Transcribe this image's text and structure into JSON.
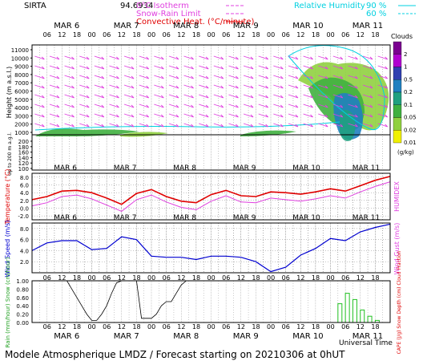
{
  "header": {
    "site": "SIRTA",
    "altitude_code": "94.6934",
    "legend_isotherm": "0°C Isotherm",
    "legend_snow_rain": "Snow-Rain Limit",
    "legend_convective": "Convective Heat. (°C/minute)",
    "legend_rh": "Relative Humidity",
    "rh_90": "90 %",
    "rh_60": "60 %"
  },
  "footer": {
    "title": "Modele Atmospherique LMDZ / Forecast starting on 20210306 at 0hUT",
    "xlabel": "Universal Time"
  },
  "days": [
    "MAR 6",
    "MAR 7",
    "MAR 8",
    "MAR 9",
    "MAR 10",
    "MAR 11"
  ],
  "hour_ticks": [
    "06",
    "12",
    "18",
    "00"
  ],
  "chart_data": [
    {
      "type": "heatmap",
      "name": "cloud-cross-section",
      "ylabel": "Height (m a.s.l.)",
      "ylabel_low": "Up to 200 m a.g.l.",
      "yticks": [
        "11000",
        "10000",
        "9000",
        "8000",
        "7000",
        "6000",
        "5000",
        "4000",
        "3000",
        "2000",
        "1000"
      ],
      "yticks_low": [
        "200",
        "180",
        "160",
        "140",
        "120",
        "100"
      ],
      "colorbar_title": "Clouds",
      "colorbar_unit": "(g/kg)",
      "colorbar_levels": [
        "2",
        "1",
        "0.5",
        "0.2",
        "0.1",
        "0.05",
        "0.02",
        "0.01"
      ],
      "colorbar_colors": [
        "#7a0090",
        "#b000d0",
        "#3040b0",
        "#2080c0",
        "#20a080",
        "#40b040",
        "#90d040",
        "#f0f000"
      ]
    },
    {
      "type": "line",
      "name": "temperature",
      "ylabel": "Temperature (°C)",
      "ylabel_right": "HUMIDEX",
      "yticks": [
        "8.0",
        "6.0",
        "4.0",
        "2.0",
        "0.0",
        "-2.0"
      ],
      "ylim": [
        -3,
        9
      ],
      "x_hours": [
        0,
        6,
        12,
        18,
        24,
        30,
        36,
        42,
        48,
        54,
        60,
        66,
        72,
        78,
        84,
        90,
        96,
        102,
        108,
        114,
        120,
        126,
        132,
        138,
        144
      ],
      "series": [
        {
          "values": [
            2.2,
            3.0,
            4.4,
            4.6,
            4.0,
            2.6,
            1.0,
            3.8,
            4.8,
            3.0,
            1.8,
            1.4,
            3.5,
            4.6,
            3.2,
            3.0,
            4.2,
            4.0,
            3.6,
            4.2,
            5.0,
            4.4,
            5.8,
            7.2,
            8.2
          ],
          "color": "#e00000"
        },
        {
          "values": [
            0.6,
            1.4,
            3.0,
            3.4,
            2.4,
            0.8,
            -0.8,
            2.2,
            3.4,
            1.6,
            0.2,
            -0.4,
            1.8,
            3.2,
            1.6,
            1.4,
            2.6,
            2.2,
            1.8,
            2.4,
            3.2,
            2.6,
            4.2,
            5.6,
            6.8
          ],
          "color": "#e040e0"
        }
      ]
    },
    {
      "type": "line",
      "name": "wind",
      "ylabel": "Wind Speed (m/s)",
      "ylabel_right": "Wind Gust (m/s)",
      "yticks": [
        "8.0",
        "6.0",
        "4.0",
        "2.0"
      ],
      "ylim": [
        0,
        9
      ],
      "x_hours": [
        0,
        6,
        12,
        18,
        24,
        30,
        36,
        42,
        48,
        54,
        60,
        66,
        72,
        78,
        84,
        90,
        96,
        102,
        108,
        114,
        120,
        126,
        132,
        138,
        144
      ],
      "series": [
        {
          "values": [
            4.0,
            5.4,
            5.8,
            5.8,
            4.2,
            4.4,
            6.5,
            6.0,
            3.0,
            2.8,
            2.8,
            2.4,
            3.0,
            3.0,
            2.8,
            2.0,
            0.2,
            1.0,
            3.2,
            4.4,
            6.2,
            5.8,
            7.4,
            8.2,
            8.8
          ],
          "color": "#0000d0"
        }
      ]
    },
    {
      "type": "bar",
      "name": "precipitation",
      "ylabel_left": "Rain (mm/hour) Snow (cm/hour)",
      "ylabel_right": "CAPE (J/g) Snow Depth (cm) Cloud Fraction",
      "yticks": [
        "1.00",
        "0.80",
        "0.60",
        "0.40",
        "0.20",
        "0.00"
      ],
      "ylim": [
        0,
        1
      ],
      "cloud_fraction_x_hours": [
        0,
        2,
        4,
        6,
        8,
        10,
        12,
        14,
        16,
        18,
        20,
        22,
        24,
        26,
        28,
        30,
        32,
        34,
        36,
        38,
        40,
        42,
        44,
        46,
        48,
        50,
        52,
        54,
        56,
        58,
        60,
        62,
        64,
        66,
        68,
        70,
        72,
        74,
        76,
        78,
        80,
        82,
        84,
        86,
        88,
        90,
        92,
        94,
        96,
        98,
        100,
        102,
        104,
        106,
        108,
        110,
        112,
        114,
        116,
        118,
        120,
        122,
        124,
        126,
        128,
        130,
        132,
        134,
        136,
        138,
        140,
        142,
        144
      ],
      "cloud_fraction": [
        1.0,
        1.0,
        1.0,
        1.0,
        1.0,
        1.0,
        1.0,
        1.0,
        0.8,
        0.6,
        0.4,
        0.2,
        0.05,
        0.05,
        0.2,
        0.4,
        0.7,
        0.95,
        1.0,
        1.0,
        1.0,
        1.0,
        0.1,
        0.1,
        0.1,
        0.2,
        0.4,
        0.5,
        0.5,
        0.7,
        0.9,
        1.0,
        1.0,
        1.0,
        1.0,
        1.0,
        1.0,
        1.0,
        1.0,
        1.0,
        1.0,
        1.0,
        1.0,
        1.0,
        1.0,
        1.0,
        1.0,
        1.0,
        1.0,
        1.0,
        1.0,
        1.0,
        1.0,
        1.0,
        1.0,
        1.0,
        1.0,
        1.0,
        1.0,
        1.0,
        1.0,
        1.0,
        1.0,
        1.0,
        1.0,
        1.0,
        1.0,
        1.0,
        1.0,
        1.0,
        1.0,
        1.0,
        1.0
      ],
      "rain_x_hours": [
        123,
        126,
        129,
        132,
        135,
        138
      ],
      "rain": [
        0.45,
        0.7,
        0.55,
        0.3,
        0.15,
        0.05
      ]
    }
  ]
}
